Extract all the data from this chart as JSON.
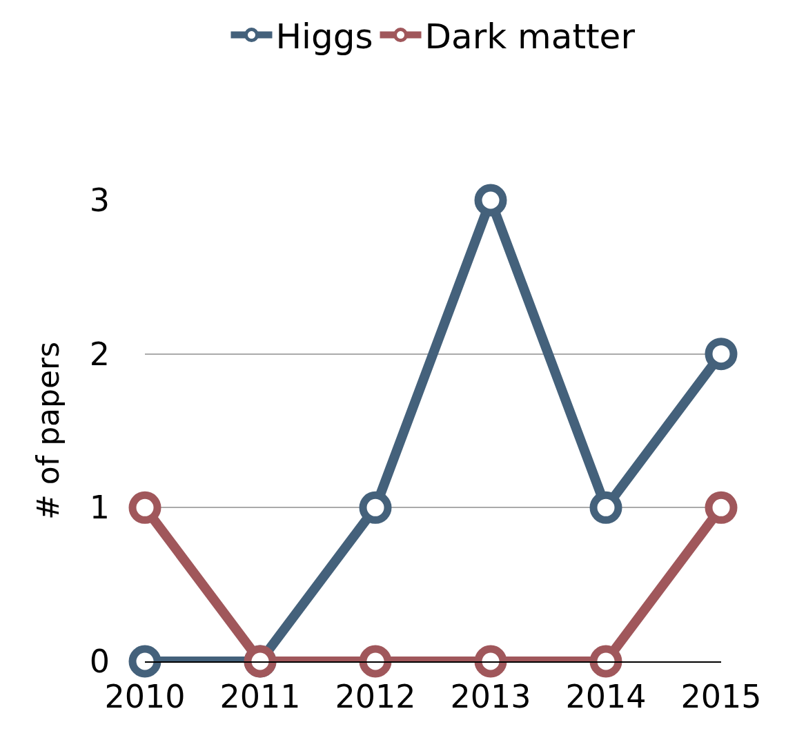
{
  "chart_data": {
    "type": "line",
    "ylabel": "# of papers",
    "categories": [
      "2010",
      "2011",
      "2012",
      "2013",
      "2014",
      "2015"
    ],
    "series": [
      {
        "name": "Higgs",
        "color": "#44617b",
        "values": [
          0,
          0,
          1,
          3,
          1,
          2
        ]
      },
      {
        "name": "Dark matter",
        "color": "#a0575b",
        "values": [
          1,
          0,
          0,
          0,
          0,
          1
        ]
      }
    ],
    "ylim": [
      0,
      3
    ],
    "yticks": [
      0,
      1,
      2,
      3
    ],
    "grid": "y",
    "legend": "top",
    "marker": "circle",
    "line_style": "solid"
  }
}
